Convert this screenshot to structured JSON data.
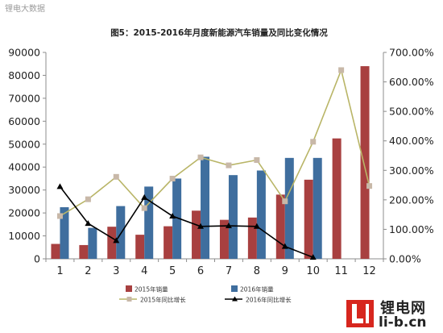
{
  "watermark": "锂电大数据",
  "brand": {
    "name_cn": "锂电网",
    "url": "li-b.cn"
  },
  "colors": {
    "bar2015": "#a84040",
    "bar2016": "#3f6e9e",
    "line2015": "#b9b567",
    "marker2015": "#c8b8a8",
    "line2016": "#000000"
  },
  "chart_data": {
    "type": "bar",
    "title": "图5：2015-2016年月度新能源汽车销量及同比变化情况",
    "categories": [
      "1",
      "2",
      "3",
      "4",
      "5",
      "6",
      "7",
      "8",
      "9",
      "10",
      "11",
      "12"
    ],
    "ylim": [
      0,
      90000
    ],
    "y_ticks": [
      "0",
      "10000",
      "20000",
      "30000",
      "40000",
      "50000",
      "60000",
      "70000",
      "80000",
      "90000"
    ],
    "y2lim": [
      0,
      7
    ],
    "y2_ticks": [
      "0.00%",
      "100.00%",
      "200.00%",
      "300.00%",
      "400.00%",
      "500.00%",
      "600.00%",
      "700.00%"
    ],
    "series": [
      {
        "name": "2015年销量",
        "kind": "bar",
        "axis": "left",
        "values": [
          6500,
          6000,
          14000,
          10500,
          14200,
          21000,
          17000,
          18000,
          28000,
          34500,
          52500,
          84000
        ]
      },
      {
        "name": "2016年销量",
        "kind": "bar",
        "axis": "left",
        "values": [
          22500,
          13500,
          23000,
          31500,
          35000,
          44500,
          36500,
          38500,
          44000,
          44000,
          null,
          null
        ]
      },
      {
        "name": "2015年同比增长",
        "kind": "line",
        "axis": "right",
        "values": [
          1.45,
          2.02,
          2.78,
          1.72,
          2.72,
          3.44,
          3.17,
          3.35,
          1.95,
          3.97,
          6.4,
          2.47
        ]
      },
      {
        "name": "2016年同比增长",
        "kind": "line",
        "axis": "right",
        "values": [
          2.45,
          1.2,
          0.62,
          2.08,
          1.45,
          1.1,
          1.12,
          1.1,
          0.42,
          0.05,
          null,
          null
        ]
      }
    ],
    "legend_position": "bottom",
    "grid": false
  }
}
